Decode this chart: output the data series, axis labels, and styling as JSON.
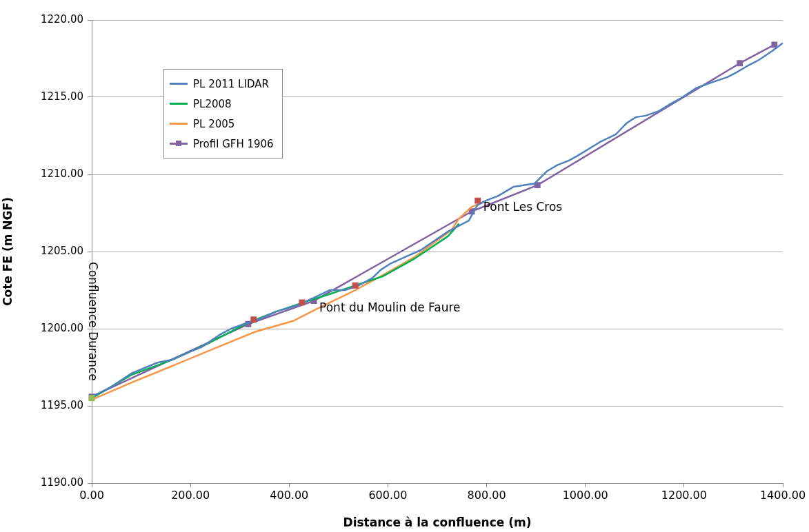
{
  "chart_data": {
    "type": "line",
    "xlabel": "Distance à la confluence (m)",
    "ylabel": "Cote FE (m NGF)",
    "xlim": [
      0,
      1400
    ],
    "ylim": [
      1190,
      1220
    ],
    "xticks": [
      {
        "value": 0,
        "label": "0.00"
      },
      {
        "value": 200,
        "label": "200.00"
      },
      {
        "value": 400,
        "label": "400.00"
      },
      {
        "value": 600,
        "label": "600.00"
      },
      {
        "value": 800,
        "label": "800.00"
      },
      {
        "value": 1000,
        "label": "1000.00"
      },
      {
        "value": 1200,
        "label": "1200.00"
      },
      {
        "value": 1400,
        "label": "1400.00"
      }
    ],
    "yticks": [
      {
        "value": 1190,
        "label": "1190.00"
      },
      {
        "value": 1195,
        "label": "1195.00"
      },
      {
        "value": 1200,
        "label": "1200.00"
      },
      {
        "value": 1205,
        "label": "1205.00"
      },
      {
        "value": 1210,
        "label": "1210.00"
      },
      {
        "value": 1215,
        "label": "1215.00"
      },
      {
        "value": 1220,
        "label": "1220.00"
      }
    ],
    "grid": "y",
    "legend": "top left",
    "line_style": "solid",
    "series": [
      {
        "name": "PL 2011 LIDAR",
        "color": "#4f81bd",
        "marker": "none",
        "x": [
          0,
          38,
          80,
          133,
          164,
          198,
          222,
          259,
          282,
          317,
          338,
          373,
          415,
          450,
          482,
          513,
          541,
          569,
          585,
          604,
          639,
          667,
          722,
          764,
          781,
          799,
          823,
          855,
          897,
          922,
          943,
          967,
          984,
          1030,
          1062,
          1083,
          1102,
          1122,
          1149,
          1169,
          1197,
          1225,
          1260,
          1288,
          1306,
          1327,
          1351,
          1379,
          1400
        ],
        "values": [
          1195.6,
          1196.2,
          1197.1,
          1197.8,
          1198.0,
          1198.5,
          1198.8,
          1199.6,
          1200.0,
          1200.4,
          1200.6,
          1201.1,
          1201.5,
          1202.0,
          1202.5,
          1202.5,
          1202.8,
          1203.3,
          1203.8,
          1204.2,
          1204.7,
          1205.1,
          1206.3,
          1207.0,
          1208.0,
          1208.3,
          1208.6,
          1209.2,
          1209.4,
          1210.2,
          1210.6,
          1210.9,
          1211.2,
          1212.1,
          1212.6,
          1213.3,
          1213.7,
          1213.8,
          1214.1,
          1214.5,
          1215.0,
          1215.6,
          1216.0,
          1216.3,
          1216.6,
          1217.0,
          1217.4,
          1218.0,
          1218.5
        ]
      },
      {
        "name": "PL2008",
        "color": "#00b050",
        "marker": "none",
        "x": [
          0,
          80,
          164,
          233,
          317,
          373,
          429,
          478,
          534,
          590,
          652,
          722,
          744
        ],
        "values": [
          1195.5,
          1197.0,
          1198.0,
          1199.0,
          1200.4,
          1201.1,
          1201.7,
          1202.2,
          1202.8,
          1203.4,
          1204.5,
          1206.0,
          1206.8
        ]
      },
      {
        "name": "PL 2005",
        "color": "#f79646",
        "marker": "none",
        "x": [
          0,
          80,
          164,
          247,
          331,
          408,
          457,
          534,
          597,
          652,
          729,
          743,
          770,
          799
        ],
        "values": [
          1195.4,
          1196.5,
          1197.6,
          1198.7,
          1199.8,
          1200.5,
          1201.3,
          1202.5,
          1203.6,
          1204.6,
          1206.4,
          1207.1,
          1207.9,
          1208.3
        ]
      },
      {
        "name": "Profil GFH 1906",
        "color": "#8064a2",
        "marker": "square",
        "x": [
          0,
          317,
          450,
          770,
          903,
          1313,
          1383
        ],
        "values": [
          1195.6,
          1200.3,
          1201.8,
          1207.6,
          1209.3,
          1217.2,
          1218.4
        ]
      },
      {
        "type": "scatter",
        "color": "#c0504d",
        "marker": "square",
        "x": [
          328,
          426,
          534,
          782
        ],
        "values": [
          1200.6,
          1201.7,
          1202.8,
          1208.3
        ]
      },
      {
        "type": "scatter",
        "color": "#9bbb59",
        "marker": "square",
        "x": [
          0
        ],
        "values": [
          1195.5
        ]
      }
    ],
    "annotations": [
      "Confluence Durance",
      {
        "text": "Pont du Moulin de Faure",
        "x": 450,
        "y": 1201.8
      },
      {
        "text": "Pont Les Cros",
        "x": 782,
        "y": 1208.3
      }
    ]
  }
}
